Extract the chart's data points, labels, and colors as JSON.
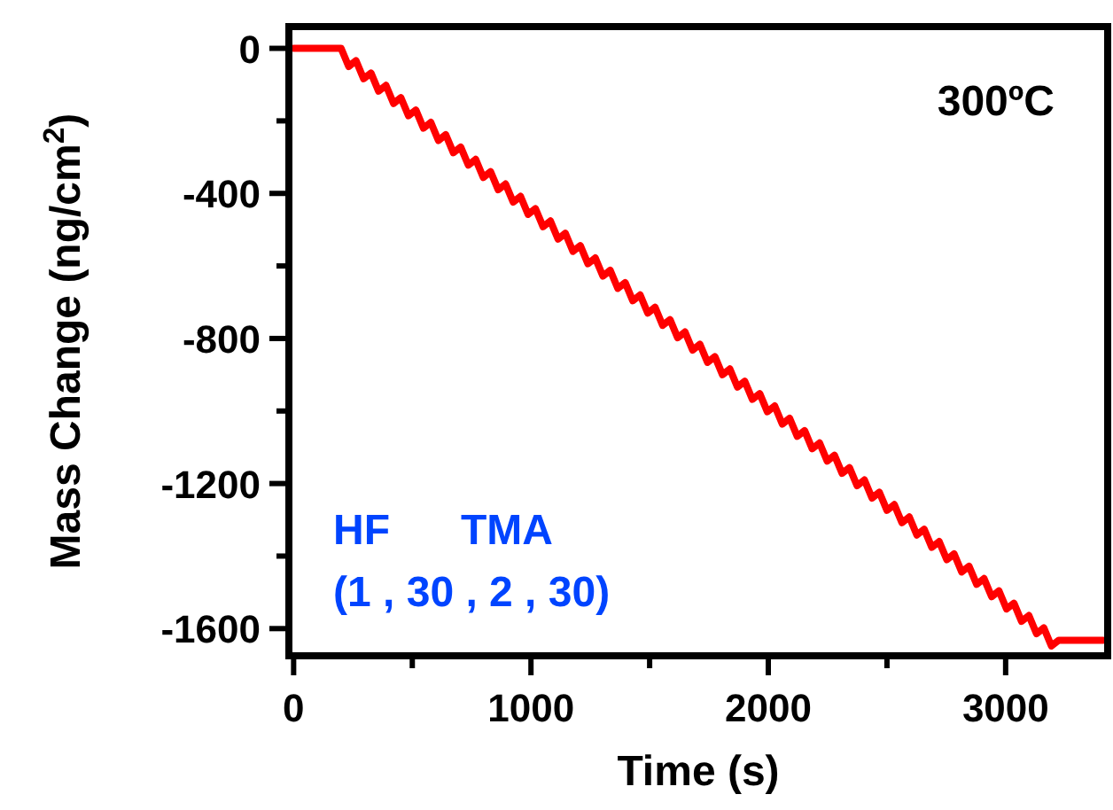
{
  "chart_data": {
    "type": "line",
    "xlabel": "Time (s)",
    "ylabel": "Mass Change (ng/cm$^{2}$)",
    "xlim": [
      -20,
      3430
    ],
    "ylim": [
      -1675,
      60
    ],
    "xticks": [
      0,
      {
        "value": 500,
        "label": null
      },
      1000,
      {
        "value": 1500,
        "label": null
      },
      2000,
      {
        "value": 2500,
        "label": null
      },
      3000
    ],
    "yticks": [
      0,
      {
        "value": -200,
        "label": null
      },
      -400,
      {
        "value": -600,
        "label": null
      },
      -800,
      {
        "value": -1000,
        "label": null
      },
      -1200,
      {
        "value": -1400,
        "label": null
      },
      -1600
    ],
    "grid": false,
    "marker": "none",
    "line_style": "solid",
    "annotations": [
      "300ºC",
      "HF      TMA",
      "(1 , 30 , 2 , 30)"
    ],
    "series": [
      {
        "color": "#ff0000",
        "x": [
          0,
          200,
          232,
          263,
          295,
          326,
          358,
          389,
          421,
          452,
          484,
          515,
          547,
          578,
          610,
          641,
          673,
          704,
          736,
          767,
          799,
          830,
          862,
          893,
          925,
          956,
          988,
          1019,
          1051,
          1082,
          1114,
          1145,
          1177,
          1208,
          1240,
          1271,
          1303,
          1334,
          1366,
          1397,
          1429,
          1460,
          1492,
          1523,
          1555,
          1586,
          1618,
          1649,
          1681,
          1712,
          1744,
          1775,
          1807,
          1838,
          1870,
          1901,
          1933,
          1964,
          1996,
          2027,
          2059,
          2090,
          2122,
          2153,
          2185,
          2216,
          2248,
          2279,
          2311,
          2342,
          2374,
          2405,
          2437,
          2468,
          2500,
          2531,
          2563,
          2594,
          2626,
          2657,
          2689,
          2720,
          2752,
          2783,
          2815,
          2846,
          2878,
          2909,
          2941,
          2972,
          3004,
          3035,
          3067,
          3098,
          3130,
          3161,
          3193,
          3224,
          3410
        ],
        "values": [
          0,
          0,
          -50,
          -34,
          -84,
          -68,
          -118,
          -102,
          -152,
          -136,
          -186,
          -170,
          -220,
          -204,
          -254,
          -238,
          -288,
          -272,
          -322,
          -306,
          -356,
          -340,
          -390,
          -374,
          -424,
          -408,
          -458,
          -442,
          -492,
          -476,
          -526,
          -510,
          -560,
          -544,
          -594,
          -578,
          -628,
          -612,
          -662,
          -646,
          -696,
          -680,
          -730,
          -714,
          -764,
          -748,
          -798,
          -782,
          -832,
          -816,
          -866,
          -850,
          -900,
          -884,
          -934,
          -918,
          -968,
          -952,
          -1002,
          -986,
          -1036,
          -1020,
          -1070,
          -1054,
          -1104,
          -1088,
          -1138,
          -1122,
          -1172,
          -1156,
          -1206,
          -1190,
          -1240,
          -1224,
          -1274,
          -1258,
          -1308,
          -1292,
          -1342,
          -1326,
          -1376,
          -1360,
          -1410,
          -1394,
          -1444,
          -1428,
          -1478,
          -1462,
          -1512,
          -1496,
          -1546,
          -1530,
          -1580,
          -1564,
          -1614,
          -1598,
          -1648,
          -1632,
          -1632
        ]
      }
    ]
  }
}
